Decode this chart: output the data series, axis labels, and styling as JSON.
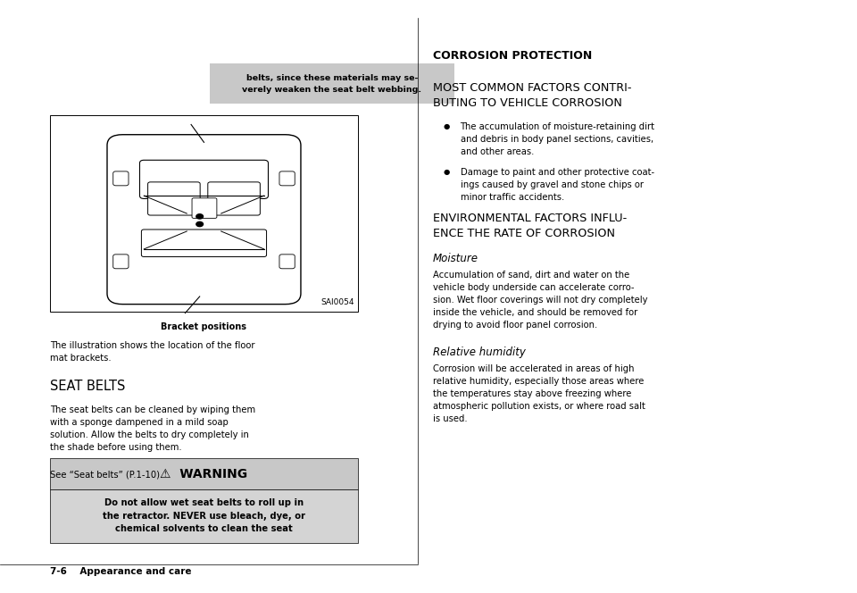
{
  "bg_color": "#ffffff",
  "page_width": 9.6,
  "page_height": 6.64,
  "fig_label": "Bracket positions",
  "fig_code": "SAI0054",
  "caption_text": "The illustration shows the location of the floor\nmat brackets.",
  "seat_belts_heading": "SEAT BELTS",
  "seat_belts_body": "The seat belts can be cleaned by wiping them\nwith a sponge dampened in a mild soap\nsolution. Allow the belts to dry completely in\nthe shade before using them.",
  "see_ref": "See “Seat belts” (P.1-10).",
  "warning_header": "⚠  WARNING",
  "warning_body": "Do not allow wet seat belts to roll up in\nthe retractor. NEVER use bleach, dye, or\nchemical solvents to clean the seat",
  "gray_box_text": "belts, since these materials may se-\nverely weaken the seat belt webbing.",
  "footer_text": "7-6    Appearance and care",
  "right_heading": "CORROSION PROTECTION",
  "right_sub1": "MOST COMMON FACTORS CONTRI-\nBUTING TO VEHICLE CORROSION",
  "right_bullet1": "The accumulation of moisture-retaining dirt\nand debris in body panel sections, cavities,\nand other areas.",
  "right_bullet2": "Damage to paint and other protective coat-\nings caused by gravel and stone chips or\nminor traffic accidents.",
  "right_sub2": "ENVIRONMENTAL FACTORS INFLU-\nENCE THE RATE OF CORROSION",
  "right_moisture_head": "Moisture",
  "right_moisture_body": "Accumulation of sand, dirt and water on the\nvehicle body underside can accelerate corro-\nsion. Wet floor coverings will not dry completely\ninside the vehicle, and should be removed for\ndrying to avoid floor panel corrosion.",
  "right_humidity_head": "Relative humidity",
  "right_humidity_body": "Corrosion will be accelerated in areas of high\nrelative humidity, especially those areas where\nthe temperatures stay above freezing where\natmospheric pollution exists, or where road salt\nis used.",
  "gray_color": "#c8c8c8",
  "light_gray": "#d4d4d4",
  "border_color": "#000000",
  "text_color": "#000000"
}
